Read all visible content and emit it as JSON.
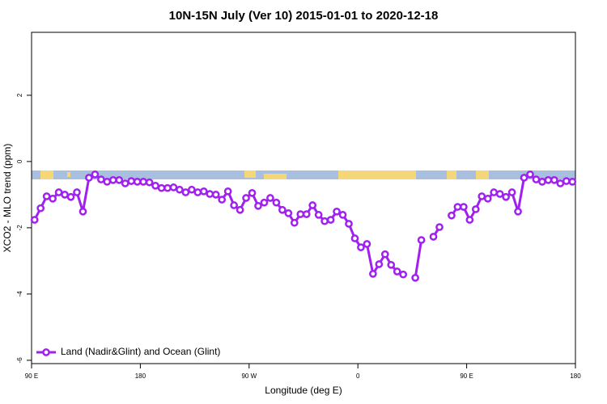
{
  "chart_data": {
    "type": "line",
    "title": "10N-15N July (Ver 10)   2015-01-01 to 2020-12-18",
    "x_label": "Longitude (deg E)",
    "y_label": "XCO2 - MLO trend (ppm)",
    "xlim": [
      90,
      540
    ],
    "ylim": [
      -6.1,
      3.9
    ],
    "xticks": [
      {
        "value": 90,
        "label": "90 E"
      },
      180,
      {
        "value": 270,
        "label": "90 W"
      },
      {
        "value": 360,
        "label": "0"
      },
      {
        "value": 450,
        "label": "90 E"
      },
      {
        "value": 540,
        "label": "180"
      }
    ],
    "yticks": [
      2,
      0,
      -2,
      -4,
      -6
    ],
    "legend": "bottom-left",
    "x": [
      92.5,
      97.5,
      102.5,
      107.5,
      112.5,
      117.5,
      122.5,
      127.5,
      132.5,
      137.5,
      142.5,
      147.5,
      152.5,
      157.5,
      162.5,
      167.5,
      172.5,
      177.5,
      182.5,
      187.5,
      192.5,
      197.5,
      202.5,
      207.5,
      212.5,
      217.5,
      222.5,
      227.5,
      232.5,
      237.5,
      242.5,
      247.5,
      252.5,
      257.5,
      262.5,
      267.5,
      272.5,
      277.5,
      282.5,
      287.5,
      292.5,
      297.5,
      302.5,
      307.5,
      312.5,
      317.5,
      322.5,
      327.5,
      332.5,
      337.5,
      342.5,
      347.5,
      352.5,
      357.5,
      362.5,
      367.5,
      372.5,
      377.5,
      382.5,
      387.5,
      392.5,
      397.5,
      402.5,
      407.5,
      412.5,
      417.5,
      422.5,
      427.5,
      432.5,
      437.5,
      442.5,
      447.5,
      452.5,
      457.5,
      462.5,
      467.5,
      472.5,
      477.5,
      482.5,
      487.5,
      492.5,
      497.5,
      502.5,
      507.5,
      512.5,
      517.5,
      522.5,
      527.5,
      532.5,
      537.5
    ],
    "series": [
      {
        "name": "Land (Nadir&Glint) and Ocean (Glint)",
        "color": "#a020f0",
        "values": [
          -1.76,
          -1.41,
          -1.05,
          -1.12,
          -0.93,
          -1.0,
          -1.07,
          -0.93,
          -1.51,
          -0.49,
          -0.39,
          -0.54,
          -0.61,
          -0.56,
          -0.56,
          -0.66,
          -0.59,
          -0.61,
          -0.61,
          -0.63,
          -0.73,
          -0.8,
          -0.8,
          -0.78,
          -0.85,
          -0.93,
          -0.85,
          -0.93,
          -0.9,
          -0.98,
          -1.0,
          -1.15,
          -0.9,
          -1.32,
          -1.46,
          -1.1,
          -0.95,
          -1.34,
          -1.24,
          -1.1,
          -1.24,
          -1.46,
          -1.56,
          -1.85,
          -1.59,
          -1.59,
          -1.32,
          -1.61,
          -1.8,
          -1.76,
          -1.51,
          -1.61,
          -1.88,
          -2.32,
          -2.59,
          -2.49,
          -3.39,
          -3.1,
          -2.8,
          -3.12,
          -3.32,
          -3.41,
          null,
          -3.51,
          -2.37,
          null,
          -2.27,
          -1.98,
          null,
          -1.63,
          -1.37,
          -1.37,
          -1.76,
          -1.44,
          -1.05,
          -1.12,
          -0.93,
          -0.98,
          -1.07,
          -0.93,
          -1.51,
          -0.49,
          -0.39,
          -0.54,
          -0.61,
          -0.56,
          -0.56,
          -0.66,
          -0.59,
          -0.61
        ]
      }
    ]
  }
}
